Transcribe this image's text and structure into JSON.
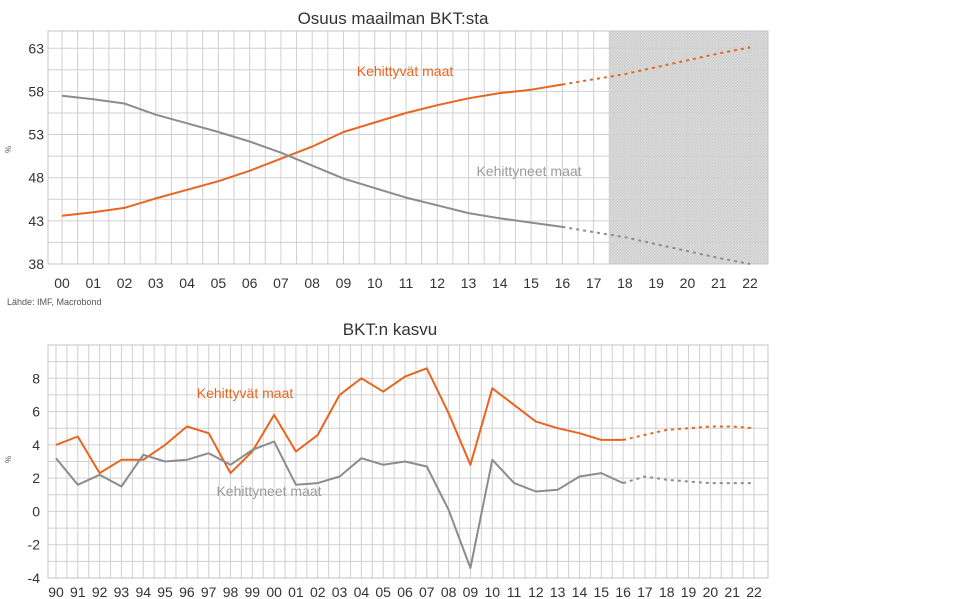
{
  "chart_data": [
    {
      "type": "line",
      "title": "Osuus maailman BKT:sta",
      "ylabel": "%",
      "source": "Lähde: IMF, Macrobond",
      "ylim": [
        38,
        65
      ],
      "yticks": [
        38,
        43,
        48,
        53,
        58,
        63
      ],
      "categories": [
        "00",
        "01",
        "02",
        "03",
        "04",
        "05",
        "06",
        "07",
        "08",
        "09",
        "10",
        "11",
        "12",
        "13",
        "14",
        "15",
        "16",
        "17",
        "18",
        "19",
        "20",
        "21",
        "22"
      ],
      "forecast_from_index": 16,
      "shaded_from_index": 17.5,
      "grid": true,
      "colors": {
        "emerging": "#e8651f",
        "advanced": "#8c8c8c",
        "shade": "#d9d9d9"
      },
      "series": [
        {
          "name": "Kehittyvät maat",
          "key": "emerging",
          "values": [
            43.6,
            44.0,
            44.5,
            45.6,
            46.6,
            47.6,
            48.8,
            50.2,
            51.6,
            53.3,
            54.4,
            55.5,
            56.4,
            57.2,
            57.8,
            58.2,
            58.8,
            59.4,
            60.0,
            60.8,
            61.6,
            62.4,
            63.1
          ]
        },
        {
          "name": "Kehittyneet maat",
          "key": "advanced",
          "values": [
            57.5,
            57.1,
            56.6,
            55.3,
            54.3,
            53.3,
            52.2,
            50.9,
            49.4,
            47.9,
            46.8,
            45.7,
            44.8,
            43.9,
            43.3,
            42.8,
            42.3,
            41.7,
            41.1,
            40.3,
            39.5,
            38.7,
            38.0
          ]
        }
      ]
    },
    {
      "type": "line",
      "title": "BKT:n kasvu",
      "ylabel": "%",
      "ylim": [
        -4,
        10
      ],
      "yticks": [
        -4,
        -2,
        0,
        2,
        4,
        6,
        8
      ],
      "categories": [
        "90",
        "91",
        "92",
        "93",
        "94",
        "95",
        "96",
        "97",
        "98",
        "99",
        "00",
        "01",
        "02",
        "03",
        "04",
        "05",
        "06",
        "07",
        "08",
        "09",
        "10",
        "11",
        "12",
        "13",
        "14",
        "15",
        "16",
        "17",
        "18",
        "19",
        "20",
        "21",
        "22"
      ],
      "forecast_from_index": 26,
      "grid": true,
      "colors": {
        "emerging": "#e8651f",
        "advanced": "#8c8c8c"
      },
      "series": [
        {
          "name": "Kehittyvät maat",
          "key": "emerging",
          "values": [
            4.0,
            4.5,
            2.3,
            3.1,
            3.1,
            4.0,
            5.1,
            4.7,
            2.3,
            3.6,
            5.8,
            3.6,
            4.6,
            7.0,
            8.0,
            7.2,
            8.1,
            8.6,
            5.9,
            2.8,
            7.4,
            6.4,
            5.4,
            5.0,
            4.7,
            4.3,
            4.3,
            4.6,
            4.9,
            5.0,
            5.1,
            5.1,
            5.0
          ]
        },
        {
          "name": "Kehittyneet maat",
          "key": "advanced",
          "values": [
            3.2,
            1.6,
            2.2,
            1.5,
            3.4,
            3.0,
            3.1,
            3.5,
            2.8,
            3.7,
            4.2,
            1.6,
            1.7,
            2.1,
            3.2,
            2.8,
            3.0,
            2.7,
            0.1,
            -3.4,
            3.1,
            1.7,
            1.2,
            1.3,
            2.1,
            2.3,
            1.7,
            2.1,
            1.9,
            1.8,
            1.7,
            1.7,
            1.7
          ]
        }
      ]
    }
  ]
}
